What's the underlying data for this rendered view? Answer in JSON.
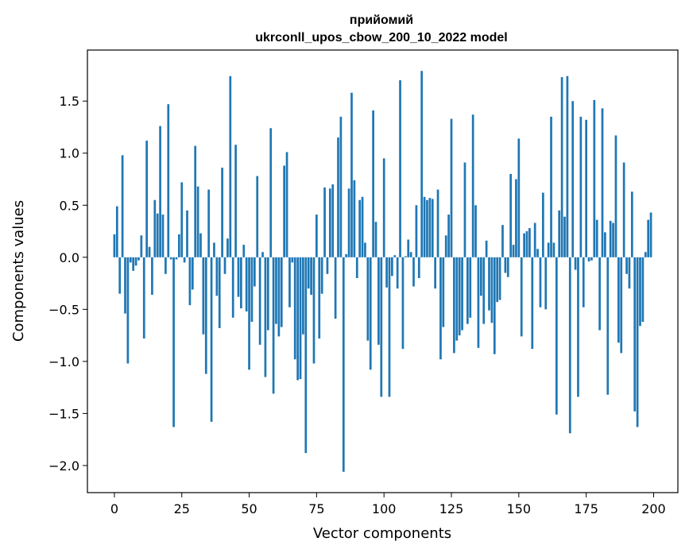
{
  "chart_data": {
    "type": "bar",
    "title_line1": "прийомий",
    "title_line2": "ukrconll_upos_cbow_200_10_2022 model",
    "xlabel": "Vector components",
    "ylabel": "Components values",
    "xlim": [
      -10,
      209
    ],
    "ylim": [
      -2.26,
      1.99
    ],
    "xticks": [
      0,
      25,
      50,
      75,
      100,
      125,
      150,
      175,
      200
    ],
    "yticks": [
      -2.0,
      -1.5,
      -1.0,
      -0.5,
      0.0,
      0.5,
      1.0,
      1.5
    ],
    "ytick_labels": [
      "−2.0",
      "−1.5",
      "−1.0",
      "−0.5",
      "0.0",
      "0.5",
      "1.0",
      "1.5"
    ],
    "grid": false,
    "bar_color": "#1f77b4",
    "values": [
      0.22,
      0.49,
      -0.35,
      0.98,
      -0.54,
      -1.02,
      -0.05,
      -0.13,
      -0.08,
      -0.03,
      0.21,
      -0.78,
      1.12,
      0.1,
      -0.36,
      0.55,
      0.42,
      1.26,
      0.41,
      -0.16,
      1.47,
      -0.02,
      -1.63,
      -0.02,
      0.22,
      0.72,
      -0.05,
      0.45,
      -0.46,
      -0.31,
      1.07,
      0.68,
      0.23,
      -0.74,
      -1.12,
      0.65,
      -1.58,
      0.14,
      -0.37,
      -0.68,
      0.86,
      -0.16,
      0.18,
      1.74,
      -0.58,
      1.08,
      -0.38,
      -0.49,
      0.12,
      -0.52,
      -1.08,
      -0.62,
      -0.28,
      0.78,
      -0.84,
      0.05,
      -1.15,
      -0.7,
      1.24,
      -1.31,
      -0.64,
      -0.76,
      -0.67,
      0.88,
      1.01,
      -0.48,
      -0.05,
      -0.98,
      -1.18,
      -1.17,
      -0.74,
      -1.88,
      -0.3,
      -0.36,
      -1.02,
      0.41,
      -0.78,
      -0.35,
      0.67,
      -0.16,
      0.66,
      0.7,
      -0.59,
      1.15,
      1.35,
      -2.06,
      0.03,
      0.66,
      1.58,
      0.74,
      -0.2,
      0.55,
      0.58,
      0.14,
      -0.8,
      -1.08,
      1.41,
      0.34,
      -0.84,
      -1.34,
      0.95,
      -0.29,
      -1.34,
      -0.18,
      0.02,
      -0.3,
      1.7,
      -0.88,
      0.01,
      0.17,
      0.05,
      -0.28,
      0.5,
      -0.2,
      1.79,
      0.58,
      0.55,
      0.57,
      0.56,
      -0.3,
      0.65,
      -0.98,
      -0.67,
      0.21,
      0.41,
      1.33,
      -0.92,
      -0.8,
      -0.75,
      -0.7,
      0.91,
      -0.64,
      -0.58,
      1.37,
      0.5,
      -0.87,
      -0.37,
      -0.64,
      0.16,
      -0.51,
      -0.63,
      -0.93,
      -0.43,
      -0.41,
      0.31,
      -0.15,
      -0.19,
      0.8,
      0.12,
      0.75,
      1.14,
      -0.76,
      0.23,
      0.25,
      0.28,
      -0.88,
      0.33,
      0.08,
      -0.48,
      0.62,
      -0.5,
      0.14,
      1.35,
      0.14,
      -1.51,
      0.45,
      1.73,
      0.39,
      1.74,
      -1.69,
      1.5,
      -0.12,
      -1.34,
      1.35,
      -0.48,
      1.32,
      -0.04,
      -0.03,
      1.51,
      0.36,
      -0.7,
      1.43,
      0.24,
      -1.32,
      0.35,
      0.33,
      1.17,
      -0.82,
      -0.92,
      0.91,
      -0.16,
      -0.3,
      0.63,
      -1.48,
      -1.63,
      -0.66,
      -0.62,
      0.05,
      0.36,
      0.43
    ]
  }
}
